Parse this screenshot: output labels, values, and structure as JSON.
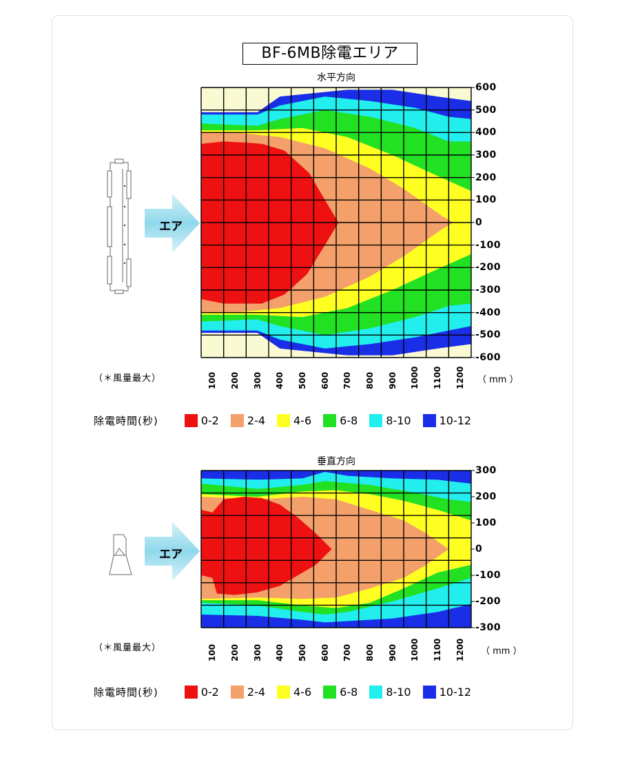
{
  "page": {
    "title": "BF-6MB除電エリア",
    "arrow_label": "エア",
    "note": "（＊風量最大）",
    "unit": "（ mm ）",
    "legend_title": "除電時間(秒)",
    "legend": [
      {
        "label": "0-2",
        "color": "#ee1111"
      },
      {
        "label": "2-4",
        "color": "#f4a06a"
      },
      {
        "label": "4-6",
        "color": "#ffff22"
      },
      {
        "label": "6-8",
        "color": "#22e022"
      },
      {
        "label": "8-10",
        "color": "#22eeee"
      },
      {
        "label": "10-12",
        "color": "#1a2ee8"
      }
    ],
    "bg_color": "#fafad2"
  },
  "chart_data": [
    {
      "type": "heatmap",
      "title": "水平方向",
      "x_ticks": [
        "100",
        "200",
        "300",
        "400",
        "500",
        "600",
        "700",
        "800",
        "900",
        "1000",
        "1100",
        "1200"
      ],
      "y_ticks": [
        "600",
        "500",
        "400",
        "300",
        "200",
        "100",
        "0",
        "-100",
        "-200",
        "-300",
        "-400",
        "-500",
        "-600"
      ],
      "xlim": [
        50,
        1250
      ],
      "ylim": [
        -600,
        600
      ],
      "regions": [
        {
          "band": "10-12",
          "contour": [
            [
              50,
              490
            ],
            [
              300,
              490
            ],
            [
              400,
              560
            ],
            [
              700,
              590
            ],
            [
              900,
              590
            ],
            [
              1100,
              560
            ],
            [
              1250,
              540
            ],
            [
              1250,
              -540
            ],
            [
              1100,
              -560
            ],
            [
              900,
              -590
            ],
            [
              700,
              -590
            ],
            [
              400,
              -560
            ],
            [
              300,
              -490
            ],
            [
              50,
              -490
            ]
          ]
        },
        {
          "band": "8-10",
          "contour": [
            [
              50,
              480
            ],
            [
              300,
              480
            ],
            [
              400,
              520
            ],
            [
              600,
              560
            ],
            [
              800,
              540
            ],
            [
              1000,
              510
            ],
            [
              1150,
              470
            ],
            [
              1250,
              460
            ],
            [
              1250,
              -460
            ],
            [
              1150,
              -480
            ],
            [
              1000,
              -510
            ],
            [
              800,
              -540
            ],
            [
              600,
              -560
            ],
            [
              400,
              -520
            ],
            [
              300,
              -480
            ],
            [
              50,
              -480
            ]
          ]
        },
        {
          "band": "6-8",
          "contour": [
            [
              50,
              440
            ],
            [
              300,
              430
            ],
            [
              400,
              460
            ],
            [
              600,
              500
            ],
            [
              800,
              470
            ],
            [
              1000,
              420
            ],
            [
              1150,
              360
            ],
            [
              1250,
              360
            ],
            [
              1250,
              -360
            ],
            [
              1150,
              -370
            ],
            [
              1000,
              -420
            ],
            [
              800,
              -470
            ],
            [
              600,
              -500
            ],
            [
              400,
              -460
            ],
            [
              300,
              -430
            ],
            [
              50,
              -440
            ]
          ]
        },
        {
          "band": "4-6",
          "contour": [
            [
              50,
              410
            ],
            [
              300,
              410
            ],
            [
              500,
              420
            ],
            [
              700,
              380
            ],
            [
              900,
              300
            ],
            [
              1050,
              230
            ],
            [
              1250,
              140
            ],
            [
              1250,
              -140
            ],
            [
              1050,
              -230
            ],
            [
              900,
              -300
            ],
            [
              700,
              -380
            ],
            [
              500,
              -420
            ],
            [
              300,
              -410
            ],
            [
              50,
              -410
            ]
          ]
        },
        {
          "band": "2-4",
          "contour": [
            [
              50,
              400
            ],
            [
              200,
              400
            ],
            [
              400,
              380
            ],
            [
              600,
              330
            ],
            [
              800,
              240
            ],
            [
              950,
              150
            ],
            [
              1120,
              30
            ],
            [
              1170,
              0
            ],
            [
              1120,
              -30
            ],
            [
              950,
              -150
            ],
            [
              800,
              -240
            ],
            [
              600,
              -330
            ],
            [
              400,
              -380
            ],
            [
              200,
              -400
            ],
            [
              50,
              -400
            ]
          ]
        },
        {
          "band": "0-2",
          "contour": [
            [
              50,
              350
            ],
            [
              150,
              360
            ],
            [
              250,
              355
            ],
            [
              320,
              350
            ],
            [
              420,
              320
            ],
            [
              530,
              220
            ],
            [
              600,
              100
            ],
            [
              660,
              0
            ],
            [
              600,
              -100
            ],
            [
              520,
              -230
            ],
            [
              420,
              -320
            ],
            [
              320,
              -360
            ],
            [
              250,
              -360
            ],
            [
              150,
              -360
            ],
            [
              50,
              -340
            ]
          ]
        }
      ]
    },
    {
      "type": "heatmap",
      "title": "垂直方向",
      "x_ticks": [
        "100",
        "200",
        "300",
        "400",
        "500",
        "600",
        "700",
        "800",
        "900",
        "1000",
        "1100",
        "1200"
      ],
      "y_ticks": [
        "300",
        "200",
        "100",
        "0",
        "-100",
        "-200",
        "-300"
      ],
      "xlim": [
        50,
        1250
      ],
      "ylim": [
        -300,
        300
      ],
      "regions": [
        {
          "band": "10-12",
          "contour": [
            [
              50,
              300
            ],
            [
              1250,
              300
            ],
            [
              1250,
              -300
            ],
            [
              50,
              -300
            ]
          ]
        },
        {
          "band": "8-10",
          "contour": [
            [
              50,
              270
            ],
            [
              300,
              265
            ],
            [
              500,
              270
            ],
            [
              600,
              295
            ],
            [
              700,
              280
            ],
            [
              900,
              270
            ],
            [
              1100,
              265
            ],
            [
              1250,
              250
            ],
            [
              1250,
              -210
            ],
            [
              1100,
              -240
            ],
            [
              900,
              -265
            ],
            [
              700,
              -275
            ],
            [
              600,
              -280
            ],
            [
              500,
              -270
            ],
            [
              300,
              -255
            ],
            [
              50,
              -250
            ]
          ]
        },
        {
          "band": "6-8",
          "contour": [
            [
              50,
              250
            ],
            [
              300,
              230
            ],
            [
              500,
              245
            ],
            [
              600,
              260
            ],
            [
              800,
              245
            ],
            [
              1000,
              215
            ],
            [
              1150,
              190
            ],
            [
              1250,
              180
            ],
            [
              1250,
              -110
            ],
            [
              1100,
              -150
            ],
            [
              900,
              -200
            ],
            [
              700,
              -240
            ],
            [
              600,
              -250
            ],
            [
              500,
              -240
            ],
            [
              300,
              -215
            ],
            [
              50,
              -205
            ]
          ]
        },
        {
          "band": "4-6",
          "contour": [
            [
              50,
              210
            ],
            [
              300,
              200
            ],
            [
              500,
              220
            ],
            [
              650,
              225
            ],
            [
              800,
              210
            ],
            [
              950,
              185
            ],
            [
              1100,
              150
            ],
            [
              1250,
              110
            ],
            [
              1250,
              -60
            ],
            [
              1100,
              -90
            ],
            [
              950,
              -150
            ],
            [
              800,
              -205
            ],
            [
              650,
              -225
            ],
            [
              500,
              -215
            ],
            [
              300,
              -195
            ],
            [
              50,
              -195
            ]
          ]
        },
        {
          "band": "2-4",
          "contour": [
            [
              50,
              200
            ],
            [
              300,
              190
            ],
            [
              500,
              200
            ],
            [
              650,
              190
            ],
            [
              800,
              150
            ],
            [
              950,
              110
            ],
            [
              1050,
              60
            ],
            [
              1150,
              0
            ],
            [
              1050,
              -60
            ],
            [
              950,
              -110
            ],
            [
              800,
              -150
            ],
            [
              650,
              -185
            ],
            [
              500,
              -190
            ],
            [
              300,
              -185
            ],
            [
              50,
              -190
            ]
          ]
        },
        {
          "band": "0-2",
          "contour": [
            [
              50,
              150
            ],
            [
              100,
              140
            ],
            [
              150,
              190
            ],
            [
              240,
              200
            ],
            [
              320,
              195
            ],
            [
              400,
              170
            ],
            [
              480,
              120
            ],
            [
              560,
              60
            ],
            [
              630,
              0
            ],
            [
              560,
              -60
            ],
            [
              480,
              -100
            ],
            [
              400,
              -140
            ],
            [
              300,
              -165
            ],
            [
              200,
              -175
            ],
            [
              120,
              -170
            ],
            [
              100,
              -110
            ],
            [
              50,
              -100
            ]
          ]
        }
      ]
    }
  ]
}
